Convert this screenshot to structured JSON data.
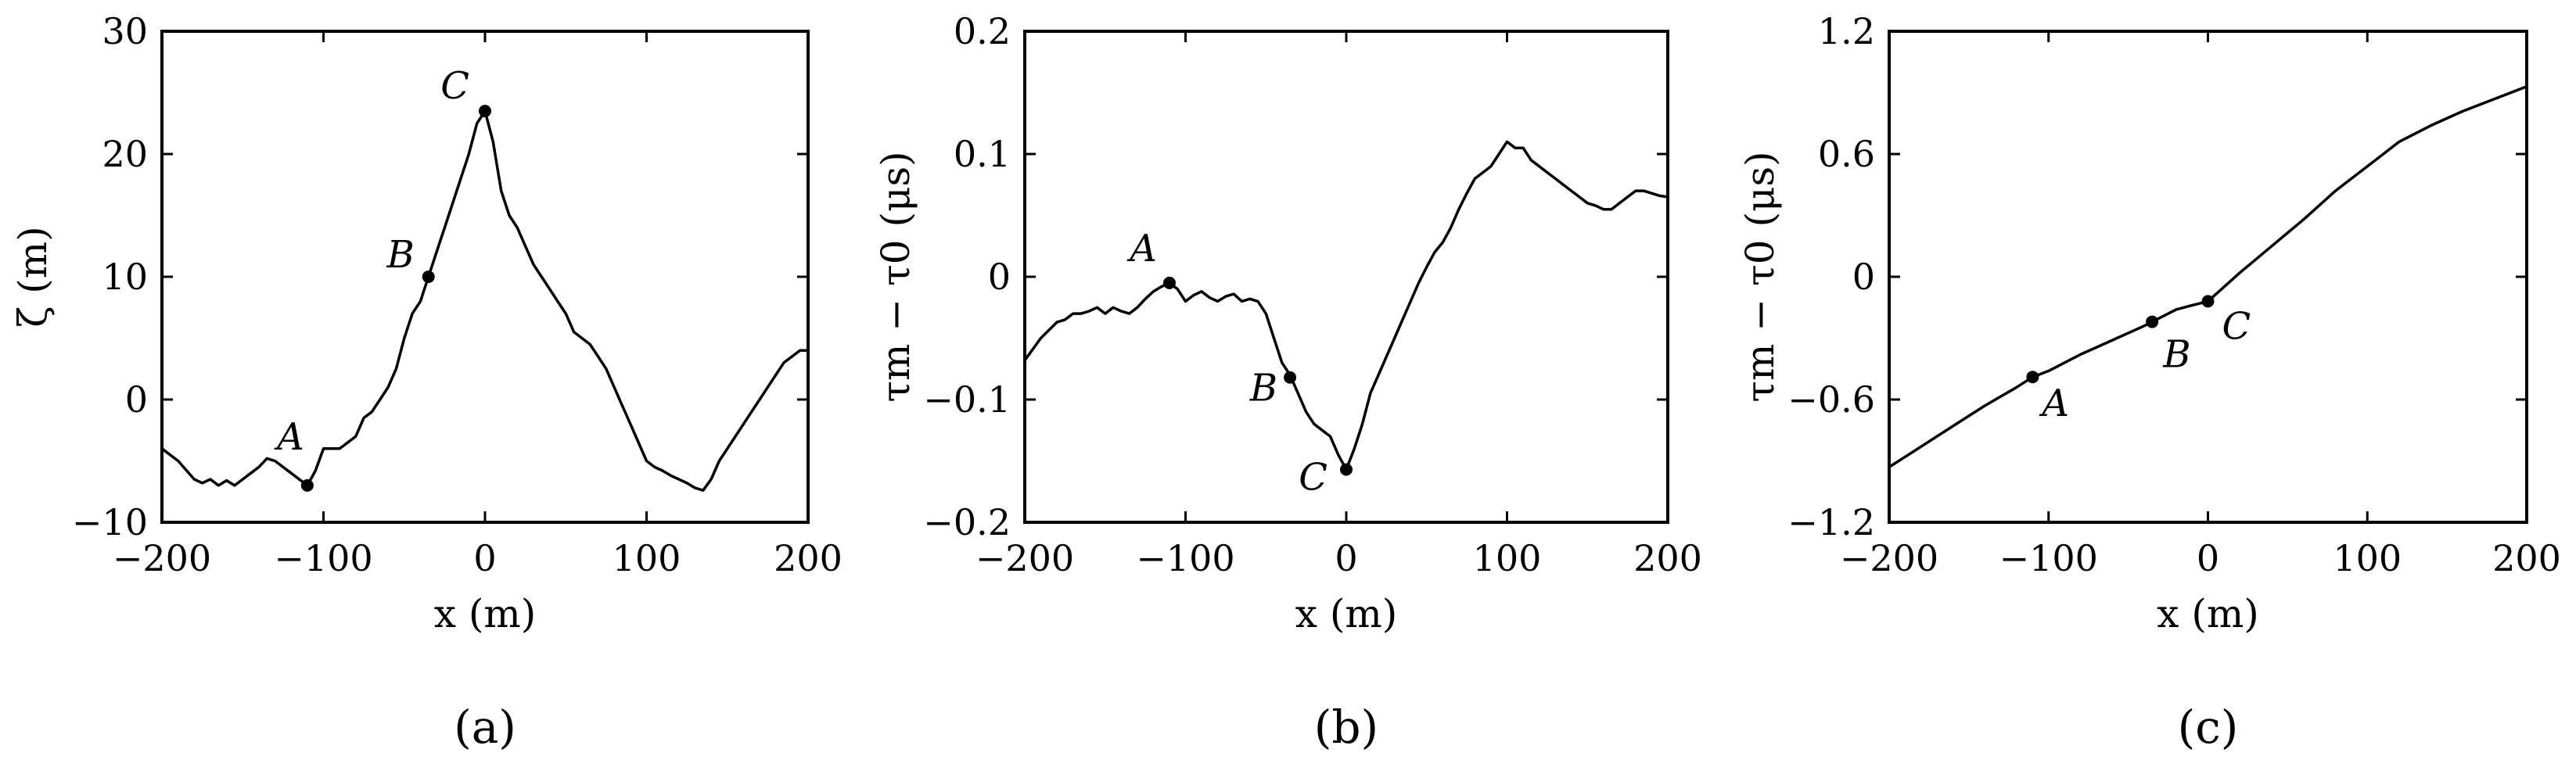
{
  "chart_data": [
    {
      "type": "line",
      "panel_label": "(a)",
      "xlabel": "x (m)",
      "ylabel": "ζ (m)",
      "xlim": [
        -200,
        200
      ],
      "ylim": [
        -10,
        30
      ],
      "xticks": [
        -200,
        -100,
        0,
        100,
        200
      ],
      "yticks": [
        -10,
        0,
        10,
        20,
        30
      ],
      "xtick_labels": [
        "−200",
        "−100",
        "0",
        "100",
        "200"
      ],
      "ytick_labels": [
        "−10",
        "0",
        "10",
        "20",
        "30"
      ],
      "series": [
        {
          "x": [
            -200,
            -190,
            -180,
            -175,
            -170,
            -165,
            -160,
            -155,
            -150,
            -145,
            -140,
            -135,
            -130,
            -125,
            -120,
            -115,
            -110,
            -105,
            -100,
            -95,
            -90,
            -85,
            -80,
            -75,
            -70,
            -65,
            -60,
            -55,
            -50,
            -45,
            -40,
            -35,
            -30,
            -25,
            -20,
            -15,
            -10,
            -5,
            0,
            5,
            10,
            15,
            20,
            25,
            30,
            35,
            40,
            45,
            50,
            55,
            60,
            65,
            70,
            75,
            80,
            85,
            90,
            95,
            100,
            105,
            110,
            115,
            120,
            125,
            130,
            135,
            140,
            145,
            150,
            155,
            160,
            165,
            170,
            175,
            180,
            185,
            190,
            195,
            200
          ],
          "y": [
            -4,
            -5,
            -6.5,
            -6.8,
            -6.5,
            -7.0,
            -6.6,
            -7.0,
            -6.5,
            -6.0,
            -5.5,
            -4.8,
            -5.0,
            -5.5,
            -6.0,
            -6.5,
            -7.0,
            -5.8,
            -4.0,
            -4.0,
            -4.0,
            -3.5,
            -3.0,
            -1.5,
            -1.0,
            0,
            1.0,
            2.5,
            5.0,
            7.0,
            8.0,
            10.0,
            12.0,
            14.0,
            16.0,
            18.0,
            20.0,
            22.5,
            23.5,
            21.0,
            17.0,
            15.0,
            14.0,
            12.5,
            11.0,
            10.0,
            9.0,
            8.0,
            7.0,
            5.5,
            5.0,
            4.5,
            3.5,
            2.5,
            1.0,
            -0.5,
            -2.0,
            -3.5,
            -5.0,
            -5.5,
            -5.8,
            -6.2,
            -6.5,
            -6.8,
            -7.2,
            -7.4,
            -6.5,
            -5.0,
            -4.0,
            -3.0,
            -2.0,
            -1.0,
            0.0,
            1.0,
            2.0,
            3.0,
            3.5,
            4.0,
            4.0
          ]
        }
      ],
      "points": [
        {
          "name": "A",
          "x": -110,
          "y": -7.0
        },
        {
          "name": "B",
          "x": -35,
          "y": 10.0
        },
        {
          "name": "C",
          "x": 0,
          "y": 23.5
        }
      ]
    },
    {
      "type": "line",
      "panel_label": "(b)",
      "xlabel": "x (m)",
      "ylabel": "τm − τ0 (μs)",
      "xlim": [
        -200,
        200
      ],
      "ylim": [
        -0.2,
        0.2
      ],
      "xticks": [
        -200,
        -100,
        0,
        100,
        200
      ],
      "yticks": [
        -0.2,
        -0.1,
        0,
        0.1,
        0.2
      ],
      "xtick_labels": [
        "−200",
        "−100",
        "0",
        "100",
        "200"
      ],
      "ytick_labels": [
        "−0.2",
        "−0.1",
        "0",
        "0.1",
        "0.2"
      ],
      "series": [
        {
          "x": [
            -200,
            -190,
            -180,
            -175,
            -170,
            -165,
            -160,
            -155,
            -150,
            -145,
            -140,
            -135,
            -130,
            -125,
            -120,
            -115,
            -110,
            -105,
            -100,
            -95,
            -90,
            -85,
            -80,
            -75,
            -70,
            -65,
            -60,
            -55,
            -50,
            -45,
            -40,
            -35,
            -30,
            -25,
            -20,
            -15,
            -10,
            -5,
            0,
            5,
            10,
            15,
            20,
            25,
            30,
            35,
            40,
            45,
            50,
            55,
            60,
            65,
            70,
            75,
            80,
            85,
            90,
            95,
            100,
            105,
            110,
            115,
            120,
            125,
            130,
            135,
            140,
            145,
            150,
            155,
            160,
            165,
            170,
            175,
            180,
            185,
            190,
            195,
            200
          ],
          "y": [
            -0.068,
            -0.05,
            -0.037,
            -0.035,
            -0.03,
            -0.03,
            -0.028,
            -0.025,
            -0.03,
            -0.025,
            -0.028,
            -0.03,
            -0.025,
            -0.018,
            -0.012,
            -0.008,
            -0.005,
            -0.01,
            -0.02,
            -0.015,
            -0.012,
            -0.017,
            -0.02,
            -0.016,
            -0.014,
            -0.02,
            -0.018,
            -0.02,
            -0.03,
            -0.05,
            -0.07,
            -0.08,
            -0.095,
            -0.11,
            -0.12,
            -0.125,
            -0.13,
            -0.145,
            -0.157,
            -0.14,
            -0.12,
            -0.095,
            -0.08,
            -0.065,
            -0.05,
            -0.035,
            -0.02,
            -0.005,
            0.008,
            0.02,
            0.028,
            0.04,
            0.055,
            0.068,
            0.08,
            0.085,
            0.09,
            0.1,
            0.11,
            0.105,
            0.105,
            0.095,
            0.09,
            0.085,
            0.08,
            0.075,
            0.07,
            0.065,
            0.06,
            0.058,
            0.055,
            0.055,
            0.06,
            0.065,
            0.07,
            0.07,
            0.068,
            0.066,
            0.065
          ]
        }
      ],
      "points": [
        {
          "name": "A",
          "x": -110,
          "y": -0.005
        },
        {
          "name": "B",
          "x": -35,
          "y": -0.082
        },
        {
          "name": "C",
          "x": 0,
          "y": -0.157
        }
      ]
    },
    {
      "type": "line",
      "panel_label": "(c)",
      "xlabel": "x (m)",
      "ylabel": "τm − τ0 (μs)",
      "xlim": [
        -200,
        200
      ],
      "ylim": [
        -1.2,
        1.2
      ],
      "xticks": [
        -200,
        -100,
        0,
        100,
        200
      ],
      "yticks": [
        -1.2,
        -0.6,
        0,
        0.6,
        1.2
      ],
      "xtick_labels": [
        "−200",
        "−100",
        "0",
        "100",
        "200"
      ],
      "ytick_labels": [
        "−1.2",
        "−0.6",
        "0",
        "0.6",
        "1.2"
      ],
      "series": [
        {
          "x": [
            -200,
            -180,
            -160,
            -140,
            -120,
            -110,
            -100,
            -80,
            -60,
            -40,
            -35,
            -20,
            -10,
            0,
            20,
            40,
            60,
            80,
            100,
            120,
            140,
            160,
            180,
            200
          ],
          "y": [
            -0.93,
            -0.83,
            -0.73,
            -0.63,
            -0.54,
            -0.49,
            -0.46,
            -0.38,
            -0.31,
            -0.24,
            -0.22,
            -0.16,
            -0.14,
            -0.12,
            0.02,
            0.15,
            0.28,
            0.42,
            0.54,
            0.66,
            0.74,
            0.81,
            0.87,
            0.93
          ]
        }
      ],
      "points": [
        {
          "name": "A",
          "x": -110,
          "y": -0.49
        },
        {
          "name": "B",
          "x": -35,
          "y": -0.22
        },
        {
          "name": "C",
          "x": 0,
          "y": -0.12
        }
      ]
    }
  ]
}
